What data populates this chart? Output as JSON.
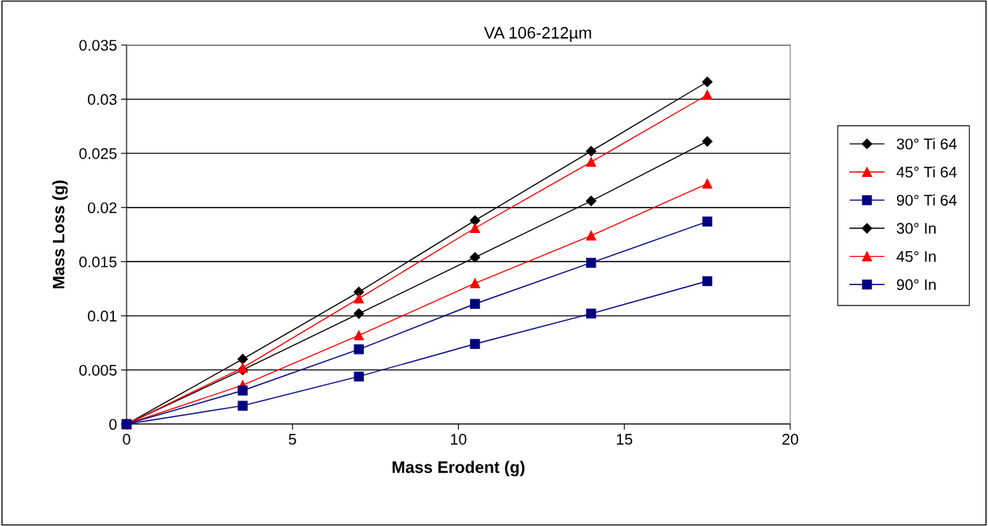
{
  "chart_data": {
    "type": "line",
    "title": "VA 106-212µm",
    "xlabel": "Mass Erodent (g)",
    "ylabel": "Mass Loss (g)",
    "x": [
      0,
      3.5,
      7,
      10.5,
      14,
      17.5
    ],
    "xlim": [
      0,
      20
    ],
    "xticks": [
      0,
      5,
      10,
      15,
      20
    ],
    "ylim": [
      0,
      0.035
    ],
    "yticks": [
      0,
      0.005,
      0.01,
      0.015,
      0.02,
      0.025,
      0.03,
      0.035
    ],
    "grid": "y",
    "legend": "right",
    "series": [
      {
        "name": "30° Ti 64",
        "color": "#000000",
        "marker": "diamond",
        "values": [
          0,
          0.005,
          0.0102,
          0.0154,
          0.0206,
          0.0261
        ]
      },
      {
        "name": "45° Ti 64",
        "color": "#ff0000",
        "marker": "triangle",
        "values": [
          0,
          0.0036,
          0.0082,
          0.013,
          0.0174,
          0.0222
        ]
      },
      {
        "name": "90° Ti 64",
        "color": "#000080",
        "marker": "square",
        "values": [
          0,
          0.0017,
          0.0044,
          0.0074,
          0.0102,
          0.0132
        ]
      },
      {
        "name": "30° In",
        "color": "#000000",
        "marker": "diamond",
        "values": [
          0,
          0.006,
          0.0122,
          0.0188,
          0.0252,
          0.0316
        ]
      },
      {
        "name": "45° In",
        "color": "#ff0000",
        "marker": "triangle",
        "values": [
          0,
          0.0052,
          0.0116,
          0.0181,
          0.0242,
          0.0304
        ]
      },
      {
        "name": "90° In",
        "color": "#000080",
        "marker": "square",
        "values": [
          0,
          0.0031,
          0.0069,
          0.0111,
          0.0149,
          0.0187
        ]
      }
    ]
  }
}
